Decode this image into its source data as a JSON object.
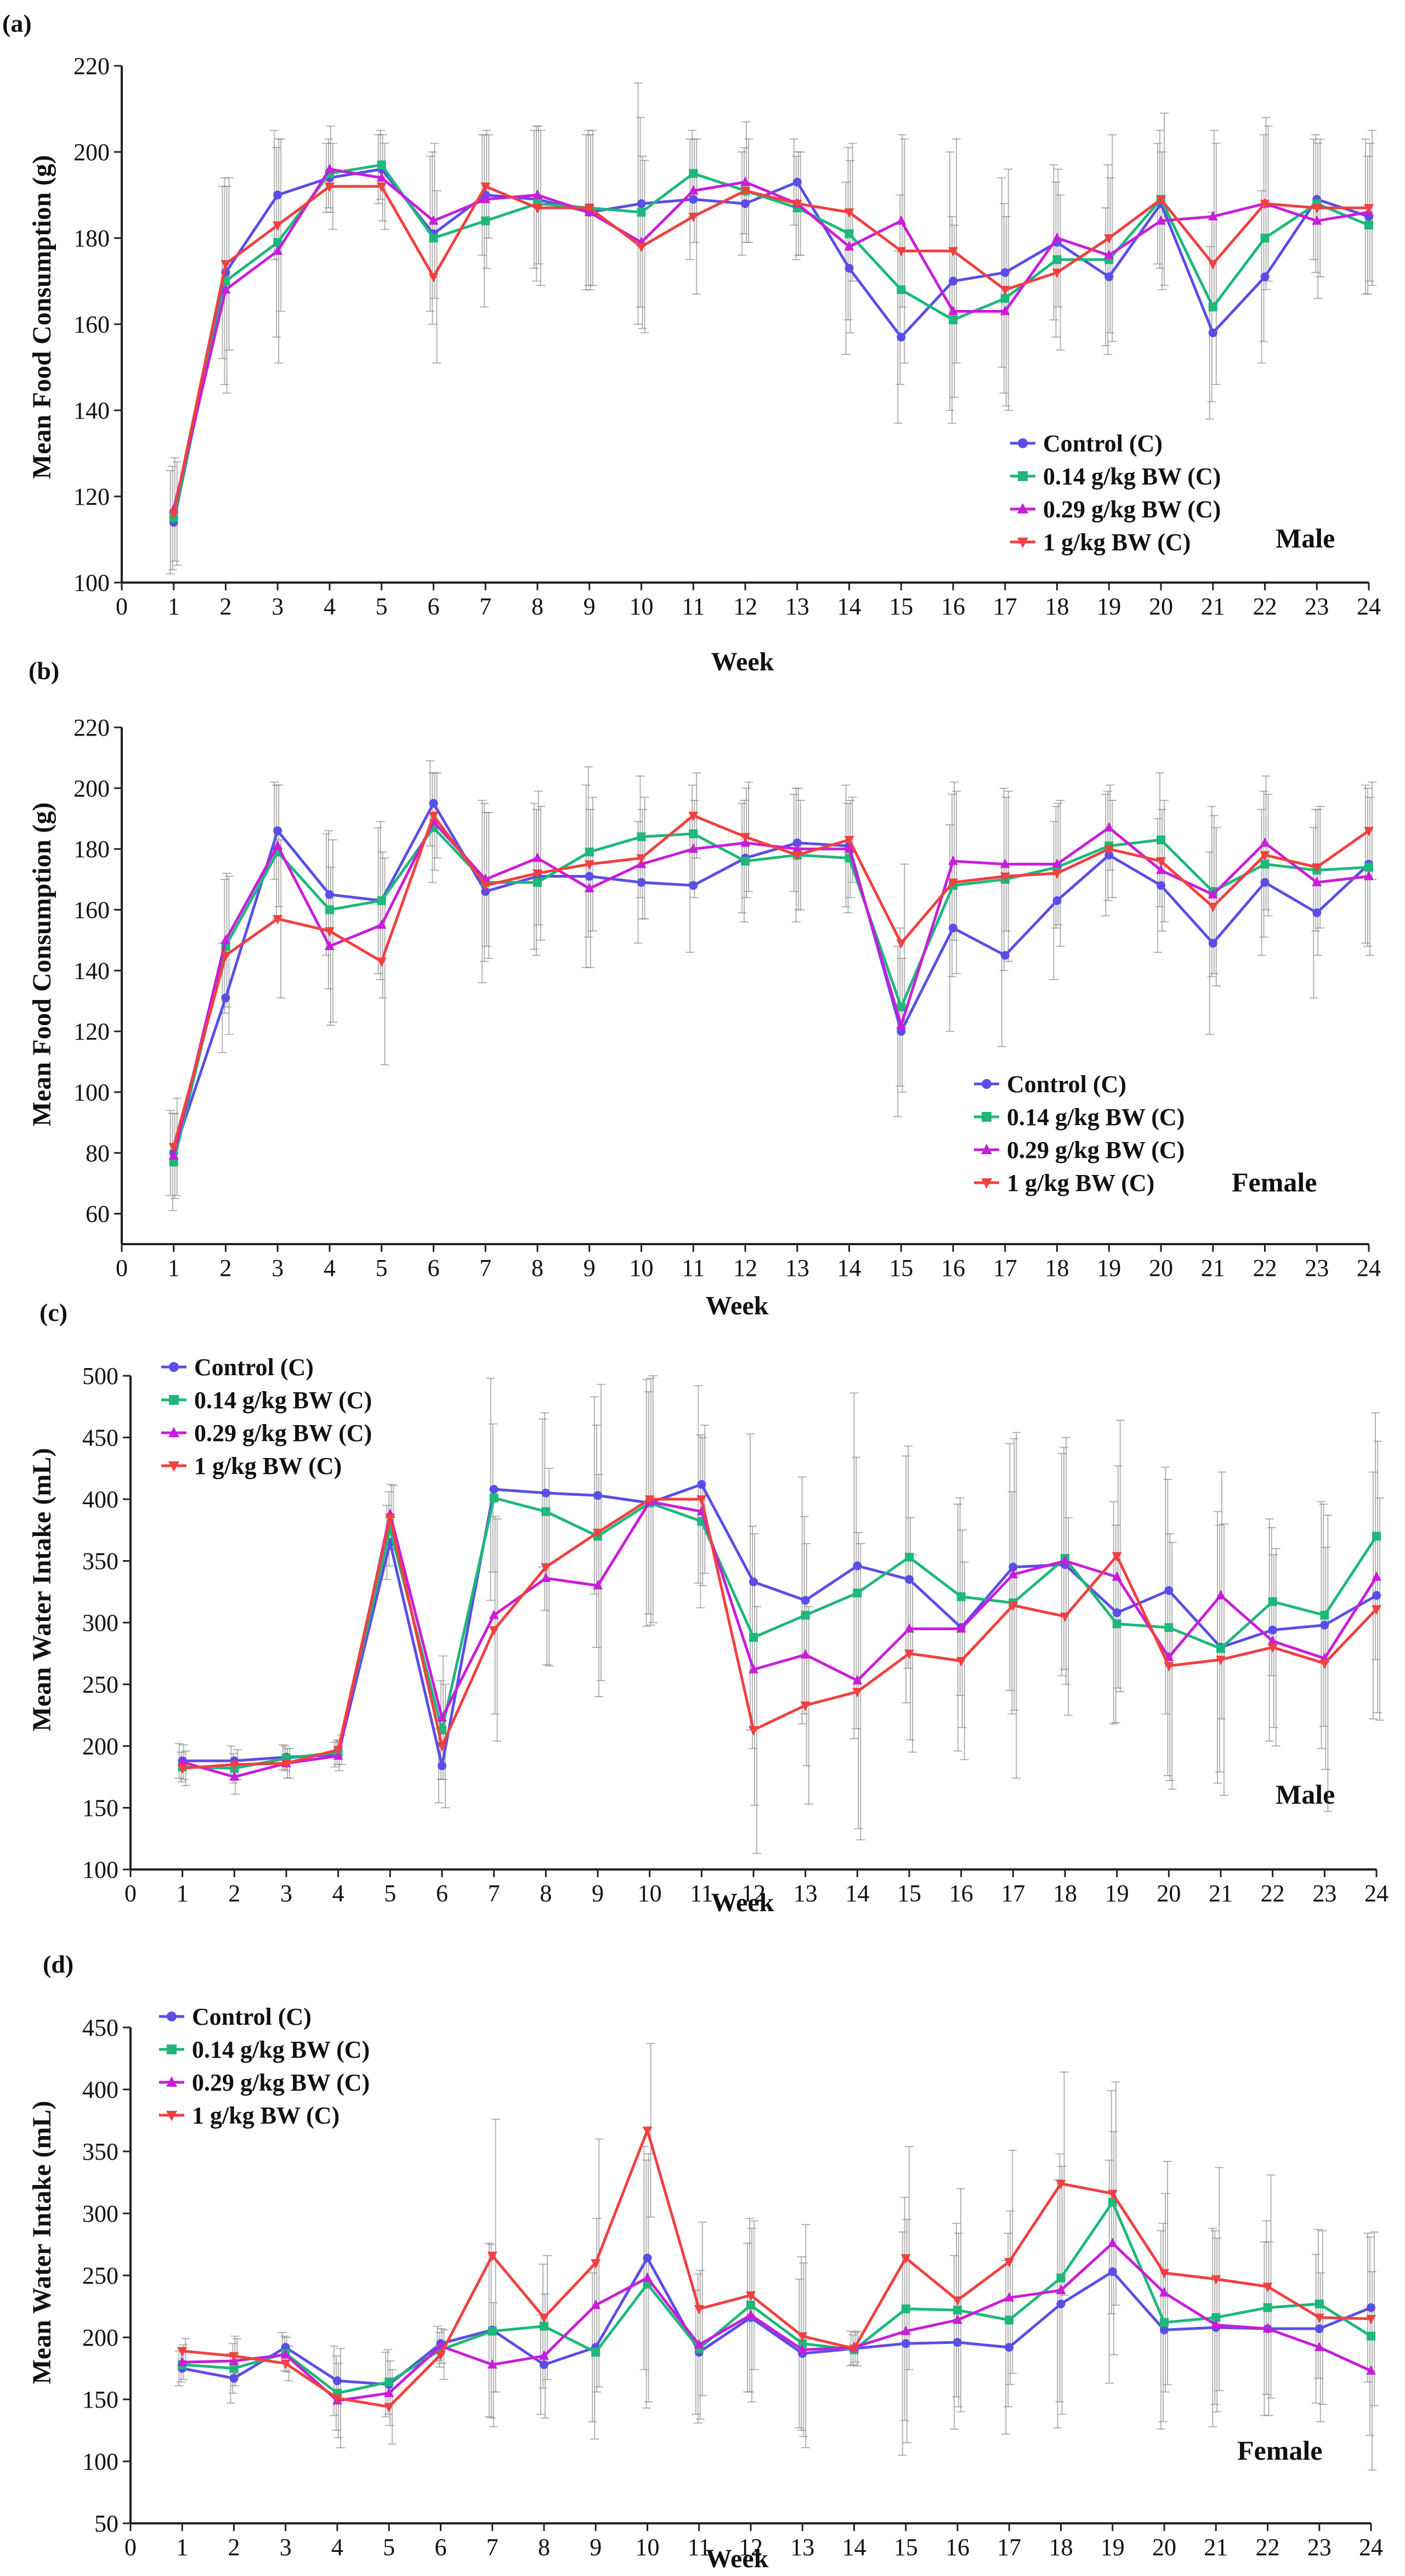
{
  "chart_data": [
    {
      "panel": "(a)",
      "type": "line",
      "ylabel": "Mean Food Consumption (g)",
      "xlabel": "Week",
      "sex_label": "Male",
      "xlim": [
        0,
        24
      ],
      "ylim": [
        100,
        220
      ],
      "yticks": [
        100,
        120,
        140,
        160,
        180,
        200,
        220
      ],
      "xticks": [
        0,
        1,
        2,
        3,
        4,
        5,
        6,
        7,
        8,
        9,
        10,
        11,
        12,
        13,
        14,
        15,
        16,
        17,
        18,
        19,
        20,
        21,
        22,
        23,
        24
      ],
      "x": [
        1,
        2,
        3,
        4,
        5,
        6,
        7,
        8,
        9,
        10,
        11,
        12,
        13,
        14,
        15,
        16,
        17,
        18,
        19,
        20,
        21,
        22,
        23,
        24
      ],
      "legend_position": "bottom-right",
      "series": [
        {
          "name": "Control (C)",
          "color": "#5a4ee6",
          "marker": "circle",
          "values": [
            114,
            172,
            190,
            194,
            196,
            181,
            190,
            189,
            186,
            188,
            189,
            188,
            193,
            173,
            157,
            170,
            172,
            179,
            171,
            188,
            158,
            171,
            189,
            185
          ],
          "errors": [
            12,
            20,
            15,
            8,
            8,
            18,
            14,
            16,
            18,
            28,
            14,
            12,
            10,
            20,
            20,
            30,
            22,
            18,
            16,
            14,
            20,
            20,
            14,
            18
          ]
        },
        {
          "name": "0.14 g/kg BW (C)",
          "color": "#1db87a",
          "marker": "square",
          "values": [
            115,
            170,
            179,
            195,
            197,
            180,
            184,
            188,
            187,
            186,
            195,
            191,
            187,
            181,
            168,
            161,
            166,
            175,
            175,
            189,
            164,
            180,
            188,
            183
          ],
          "errors": [
            12,
            24,
            22,
            8,
            8,
            20,
            20,
            18,
            18,
            22,
            10,
            10,
            12,
            20,
            22,
            24,
            22,
            18,
            22,
            16,
            22,
            24,
            16,
            16
          ]
        },
        {
          "name": "0.29 g/kg BW (C)",
          "color": "#c81ed8",
          "marker": "triangle-up",
          "values": [
            117,
            168,
            177,
            196,
            194,
            184,
            189,
            190,
            186,
            179,
            191,
            193,
            188,
            178,
            184,
            163,
            163,
            180,
            176,
            184,
            185,
            188,
            184,
            186
          ],
          "errors": [
            12,
            24,
            26,
            10,
            10,
            18,
            16,
            16,
            18,
            20,
            12,
            14,
            12,
            20,
            20,
            20,
            22,
            16,
            18,
            16,
            20,
            20,
            18,
            16
          ]
        },
        {
          "name": "1 g/kg BW (C)",
          "color": "#f04040",
          "marker": "triangle-down",
          "values": [
            116,
            174,
            183,
            192,
            192,
            171,
            192,
            187,
            187,
            178,
            185,
            191,
            188,
            186,
            177,
            177,
            168,
            172,
            180,
            189,
            174,
            188,
            187,
            187
          ],
          "errors": [
            12,
            20,
            20,
            10,
            10,
            20,
            12,
            18,
            18,
            20,
            18,
            12,
            12,
            16,
            26,
            26,
            28,
            18,
            24,
            20,
            28,
            18,
            16,
            18
          ]
        }
      ]
    },
    {
      "panel": "(b)",
      "type": "line",
      "ylabel": "Mean Food Consumption (g)",
      "xlabel": "Week",
      "sex_label": "Female",
      "xlim": [
        0,
        24
      ],
      "ylim": [
        50,
        220
      ],
      "yticks": [
        60,
        80,
        100,
        120,
        140,
        160,
        180,
        200,
        220
      ],
      "xticks": [
        0,
        1,
        2,
        3,
        4,
        5,
        6,
        7,
        8,
        9,
        10,
        11,
        12,
        13,
        14,
        15,
        16,
        17,
        18,
        19,
        20,
        21,
        22,
        23,
        24
      ],
      "x": [
        1,
        2,
        3,
        4,
        5,
        6,
        7,
        8,
        9,
        10,
        11,
        12,
        13,
        14,
        15,
        16,
        17,
        18,
        19,
        20,
        21,
        22,
        23,
        24
      ],
      "legend_position": "bottom-right",
      "series": [
        {
          "name": "Control (C)",
          "color": "#5a4ee6",
          "marker": "circle",
          "values": [
            80,
            131,
            186,
            165,
            163,
            195,
            166,
            171,
            171,
            169,
            168,
            177,
            182,
            181,
            120,
            154,
            145,
            163,
            178,
            168,
            149,
            169,
            159,
            175
          ],
          "errors": [
            14,
            18,
            16,
            20,
            24,
            14,
            30,
            24,
            30,
            20,
            22,
            18,
            16,
            20,
            28,
            34,
            30,
            26,
            20,
            22,
            30,
            24,
            28,
            26
          ]
        },
        {
          "name": "0.14 g/kg BW (C)",
          "color": "#1db87a",
          "marker": "square",
          "values": [
            77,
            148,
            179,
            160,
            163,
            187,
            169,
            169,
            179,
            184,
            185,
            176,
            178,
            177,
            128,
            168,
            170,
            174,
            181,
            183,
            166,
            175,
            173,
            174
          ],
          "errors": [
            16,
            22,
            22,
            26,
            26,
            18,
            26,
            24,
            28,
            20,
            16,
            20,
            22,
            18,
            26,
            30,
            30,
            20,
            18,
            22,
            28,
            24,
            20,
            26
          ]
        },
        {
          "name": "0.29 g/kg BW (C)",
          "color": "#c81ed8",
          "marker": "triangle-up",
          "values": [
            79,
            150,
            181,
            148,
            155,
            189,
            170,
            177,
            167,
            175,
            180,
            182,
            180,
            180,
            122,
            176,
            175,
            175,
            187,
            173,
            165,
            182,
            169,
            171
          ],
          "errors": [
            14,
            22,
            20,
            26,
            24,
            16,
            22,
            22,
            26,
            18,
            16,
            18,
            20,
            16,
            22,
            26,
            22,
            20,
            14,
            20,
            26,
            22,
            24,
            26
          ]
        },
        {
          "name": "1 g/kg BW (C)",
          "color": "#f04040",
          "marker": "triangle-down",
          "values": [
            82,
            145,
            157,
            153,
            143,
            191,
            168,
            172,
            175,
            177,
            191,
            184,
            178,
            183,
            149,
            169,
            171,
            172,
            180,
            176,
            161,
            178,
            174,
            186
          ],
          "errors": [
            16,
            26,
            26,
            30,
            34,
            14,
            24,
            22,
            22,
            20,
            14,
            18,
            18,
            14,
            26,
            30,
            28,
            24,
            16,
            20,
            26,
            20,
            20,
            16
          ]
        }
      ]
    },
    {
      "panel": "(c)",
      "type": "line",
      "ylabel": "Mean Water Intake (mL)",
      "xlabel": "Week",
      "sex_label": "Male",
      "xlim": [
        0,
        24
      ],
      "ylim": [
        100,
        500
      ],
      "yticks": [
        100,
        150,
        200,
        250,
        300,
        350,
        400,
        450,
        500
      ],
      "xticks": [
        0,
        1,
        2,
        3,
        4,
        5,
        6,
        7,
        8,
        9,
        10,
        11,
        12,
        13,
        14,
        15,
        16,
        17,
        18,
        19,
        20,
        21,
        22,
        23,
        24
      ],
      "x": [
        1,
        2,
        3,
        4,
        5,
        6,
        7,
        8,
        9,
        10,
        11,
        12,
        13,
        14,
        15,
        16,
        17,
        18,
        19,
        20,
        21,
        22,
        23,
        24
      ],
      "legend_position": "top-left",
      "series": [
        {
          "name": "Control (C)",
          "color": "#5a4ee6",
          "marker": "circle",
          "values": [
            188,
            188,
            191,
            193,
            365,
            184,
            408,
            405,
            403,
            397,
            412,
            333,
            318,
            346,
            335,
            296,
            345,
            347,
            308,
            326,
            280,
            294,
            298,
            322
          ],
          "errors": [
            14,
            12,
            10,
            10,
            30,
            30,
            90,
            60,
            80,
            100,
            80,
            120,
            100,
            140,
            100,
            100,
            100,
            90,
            90,
            100,
            110,
            90,
            100,
            100
          ]
        },
        {
          "name": "0.14 g/kg BW (C)",
          "color": "#1db87a",
          "marker": "square",
          "values": [
            183,
            182,
            190,
            195,
            376,
            213,
            401,
            390,
            370,
            397,
            382,
            288,
            306,
            324,
            353,
            321,
            316,
            352,
            299,
            296,
            279,
            317,
            306,
            370
          ],
          "errors": [
            12,
            12,
            10,
            10,
            30,
            40,
            60,
            80,
            90,
            90,
            70,
            90,
            80,
            110,
            90,
            80,
            90,
            90,
            80,
            120,
            100,
            60,
            90,
            100
          ]
        },
        {
          "name": "0.29 g/kg BW (C)",
          "color": "#c81ed8",
          "marker": "triangle-up",
          "values": [
            187,
            175,
            186,
            192,
            388,
            223,
            306,
            336,
            330,
            398,
            390,
            262,
            274,
            253,
            295,
            295,
            339,
            350,
            337,
            272,
            322,
            285,
            271,
            337
          ],
          "errors": [
            14,
            14,
            12,
            12,
            24,
            50,
            80,
            70,
            90,
            100,
            60,
            110,
            90,
            120,
            90,
            80,
            110,
            100,
            90,
            100,
            100,
            70,
            90,
            110
          ]
        },
        {
          "name": "1 g/kg BW (C)",
          "color": "#f04040",
          "marker": "triangle-down",
          "values": [
            182,
            185,
            186,
            197,
            385,
            200,
            294,
            345,
            373,
            400,
            400,
            213,
            233,
            244,
            275,
            269,
            314,
            305,
            354,
            265,
            270,
            280,
            267,
            311
          ],
          "errors": [
            14,
            12,
            12,
            12,
            26,
            50,
            90,
            80,
            120,
            100,
            60,
            100,
            80,
            120,
            80,
            80,
            140,
            80,
            110,
            100,
            110,
            80,
            120,
            90
          ]
        }
      ]
    },
    {
      "panel": "(d)",
      "type": "line",
      "ylabel": "Mean Water Intake (mL)",
      "xlabel": "Week",
      "sex_label": "Female",
      "xlim": [
        0,
        24
      ],
      "ylim": [
        50,
        450
      ],
      "yticks": [
        50,
        100,
        150,
        200,
        250,
        300,
        350,
        400,
        450
      ],
      "xticks": [
        0,
        1,
        2,
        3,
        4,
        5,
        6,
        7,
        8,
        9,
        10,
        11,
        12,
        13,
        14,
        15,
        16,
        17,
        18,
        19,
        20,
        21,
        22,
        23,
        24
      ],
      "x": [
        1,
        2,
        3,
        4,
        5,
        6,
        7,
        8,
        9,
        10,
        11,
        12,
        13,
        14,
        15,
        16,
        17,
        18,
        19,
        20,
        21,
        22,
        23,
        24
      ],
      "legend_position": "top-left",
      "series": [
        {
          "name": "Control (C)",
          "color": "#5a4ee6",
          "marker": "circle",
          "values": [
            175,
            167,
            192,
            165,
            162,
            195,
            206,
            178,
            192,
            264,
            188,
            216,
            187,
            191,
            195,
            196,
            192,
            227,
            253,
            206,
            208,
            207,
            207,
            224
          ],
          "errors": [
            14,
            20,
            12,
            28,
            26,
            14,
            70,
            40,
            60,
            90,
            50,
            60,
            60,
            14,
            90,
            70,
            70,
            100,
            90,
            80,
            80,
            70,
            60,
            60
          ]
        },
        {
          "name": "0.14 g/kg BW (C)",
          "color": "#1db87a",
          "marker": "square",
          "values": [
            178,
            175,
            187,
            155,
            164,
            190,
            205,
            209,
            188,
            243,
            191,
            226,
            195,
            190,
            223,
            222,
            214,
            248,
            309,
            212,
            216,
            224,
            227,
            201
          ],
          "errors": [
            14,
            20,
            14,
            30,
            26,
            14,
            70,
            50,
            70,
            100,
            60,
            70,
            70,
            12,
            90,
            70,
            70,
            100,
            90,
            80,
            70,
            70,
            60,
            80
          ]
        },
        {
          "name": "0.29 g/kg BW (C)",
          "color": "#c81ed8",
          "marker": "triangle-up",
          "values": [
            180,
            181,
            186,
            149,
            155,
            193,
            178,
            185,
            226,
            248,
            194,
            218,
            190,
            192,
            205,
            214,
            232,
            238,
            276,
            236,
            210,
            207,
            192,
            173
          ],
          "errors": [
            14,
            20,
            14,
            30,
            26,
            14,
            50,
            50,
            70,
            100,
            60,
            70,
            70,
            12,
            90,
            70,
            70,
            100,
            90,
            80,
            70,
            70,
            60,
            80
          ]
        },
        {
          "name": "1 g/kg BW (C)",
          "color": "#f04040",
          "marker": "triangle-down",
          "values": [
            189,
            185,
            179,
            151,
            144,
            186,
            266,
            216,
            260,
            367,
            223,
            234,
            201,
            191,
            264,
            230,
            261,
            324,
            316,
            252,
            247,
            241,
            216,
            215
          ],
          "errors": [
            10,
            14,
            14,
            40,
            30,
            20,
            110,
            50,
            100,
            70,
            70,
            60,
            90,
            14,
            90,
            90,
            90,
            90,
            90,
            90,
            90,
            90,
            70,
            70
          ]
        }
      ]
    }
  ]
}
